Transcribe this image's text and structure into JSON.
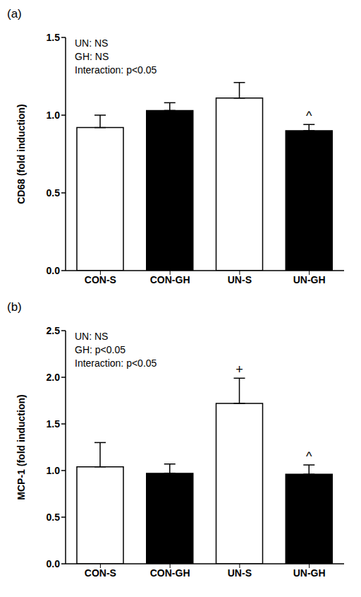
{
  "chart_data": [
    {
      "type": "bar",
      "panel": "(a)",
      "y_label": "CD68 (fold induction)",
      "categories": [
        "CON-S",
        "CON-GH",
        "UN-S",
        "UN-GH"
      ],
      "values": [
        0.92,
        1.03,
        1.11,
        0.9
      ],
      "errors": [
        0.08,
        0.05,
        0.1,
        0.04
      ],
      "colors": [
        "#ffffff",
        "#000000",
        "#ffffff",
        "#000000"
      ],
      "ylim": [
        0,
        1.5
      ],
      "yticks": [
        {
          "value": 0,
          "label": "0.0"
        },
        0.5,
        {
          "value": 1,
          "label": "1.0"
        },
        1.5
      ],
      "annotations": [
        "UN: NS",
        "GH: NS",
        "Interaction: p<0.05"
      ],
      "significance": [
        null,
        null,
        null,
        "^"
      ]
    },
    {
      "type": "bar",
      "panel": "(b)",
      "y_label": "MCP-1 (fold induction)",
      "categories": [
        "CON-S",
        "CON-GH",
        "UN-S",
        "UN-GH"
      ],
      "values": [
        1.04,
        0.97,
        1.72,
        0.96
      ],
      "errors": [
        0.26,
        0.1,
        0.27,
        0.1
      ],
      "colors": [
        "#ffffff",
        "#000000",
        "#ffffff",
        "#000000"
      ],
      "ylim": [
        0,
        2.5
      ],
      "yticks": [
        {
          "value": 0,
          "label": "0.0"
        },
        0.5,
        {
          "value": 1,
          "label": "1.0"
        },
        1.5,
        {
          "value": 2,
          "label": "2.0"
        },
        2.5
      ],
      "annotations": [
        "UN: NS",
        "GH: p<0.05",
        "Interaction: p<0.05"
      ],
      "significance": [
        null,
        null,
        "+",
        "^"
      ]
    }
  ]
}
